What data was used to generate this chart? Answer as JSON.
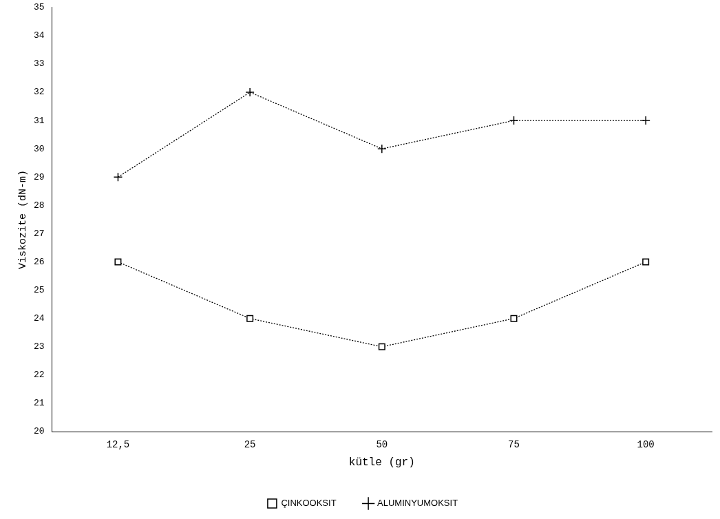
{
  "chart_data": {
    "type": "line",
    "xlabel": "kütle (gr)",
    "ylabel": "Viskozite (dN-m)",
    "categories": [
      "12,5",
      "25",
      "50",
      "75",
      "100"
    ],
    "series": [
      {
        "name": "ÇINKOOKSIT",
        "color": "#000000",
        "marker": "square",
        "values": [
          26,
          24,
          23,
          24,
          26
        ]
      },
      {
        "name": "ALUMINYUMOKSIT",
        "color": "#000000",
        "marker": "cross",
        "values": [
          29,
          32,
          30,
          31,
          31
        ]
      }
    ],
    "ylim": [
      20,
      35
    ],
    "yticks": [
      20,
      21,
      22,
      23,
      24,
      25,
      26,
      27,
      28,
      29,
      30,
      31,
      32,
      33,
      34,
      35
    ],
    "grid": false,
    "legend": "bottom",
    "line_style": "dotted"
  }
}
